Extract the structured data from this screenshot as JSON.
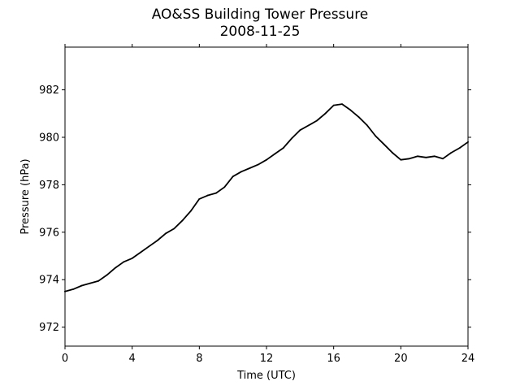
{
  "chart_data": {
    "type": "line",
    "title": "AO&SS Building Tower Pressure",
    "subtitle": "2008-11-25",
    "xlabel": "Time (UTC)",
    "ylabel": "Pressure (hPa)",
    "xlim": [
      0,
      24
    ],
    "ylim": [
      971.2,
      983.8
    ],
    "xticks": [
      0,
      4,
      8,
      12,
      16,
      20,
      24
    ],
    "yticks": [
      972,
      974,
      976,
      978,
      980,
      982
    ],
    "grid": false,
    "legend": "none",
    "series": [
      {
        "color": "#000000",
        "x": [
          0,
          0.5,
          1,
          1.5,
          2,
          2.5,
          3,
          3.5,
          4,
          4.5,
          5,
          5.5,
          6,
          6.5,
          7,
          7.5,
          8,
          8.5,
          9,
          9.5,
          10,
          10.5,
          11,
          11.5,
          12,
          12.5,
          13,
          13.5,
          14,
          14.5,
          15,
          15.5,
          16,
          16.5,
          17,
          17.5,
          18,
          18.5,
          19,
          19.5,
          20,
          20.5,
          21,
          21.5,
          22,
          22.5,
          23,
          23.5,
          24
        ],
        "y": [
          973.5,
          973.6,
          973.75,
          973.85,
          973.95,
          974.2,
          974.5,
          974.75,
          974.9,
          975.15,
          975.4,
          975.65,
          975.95,
          976.15,
          976.5,
          976.9,
          977.4,
          977.55,
          977.65,
          977.9,
          978.35,
          978.55,
          978.7,
          978.85,
          979.05,
          979.3,
          979.55,
          979.95,
          980.3,
          980.5,
          980.7,
          981.0,
          981.35,
          981.4,
          981.15,
          980.85,
          980.5,
          980.05,
          979.7,
          979.35,
          979.05,
          979.1,
          979.2,
          979.15,
          979.2,
          979.1,
          979.35,
          979.55,
          979.8
        ]
      }
    ]
  }
}
